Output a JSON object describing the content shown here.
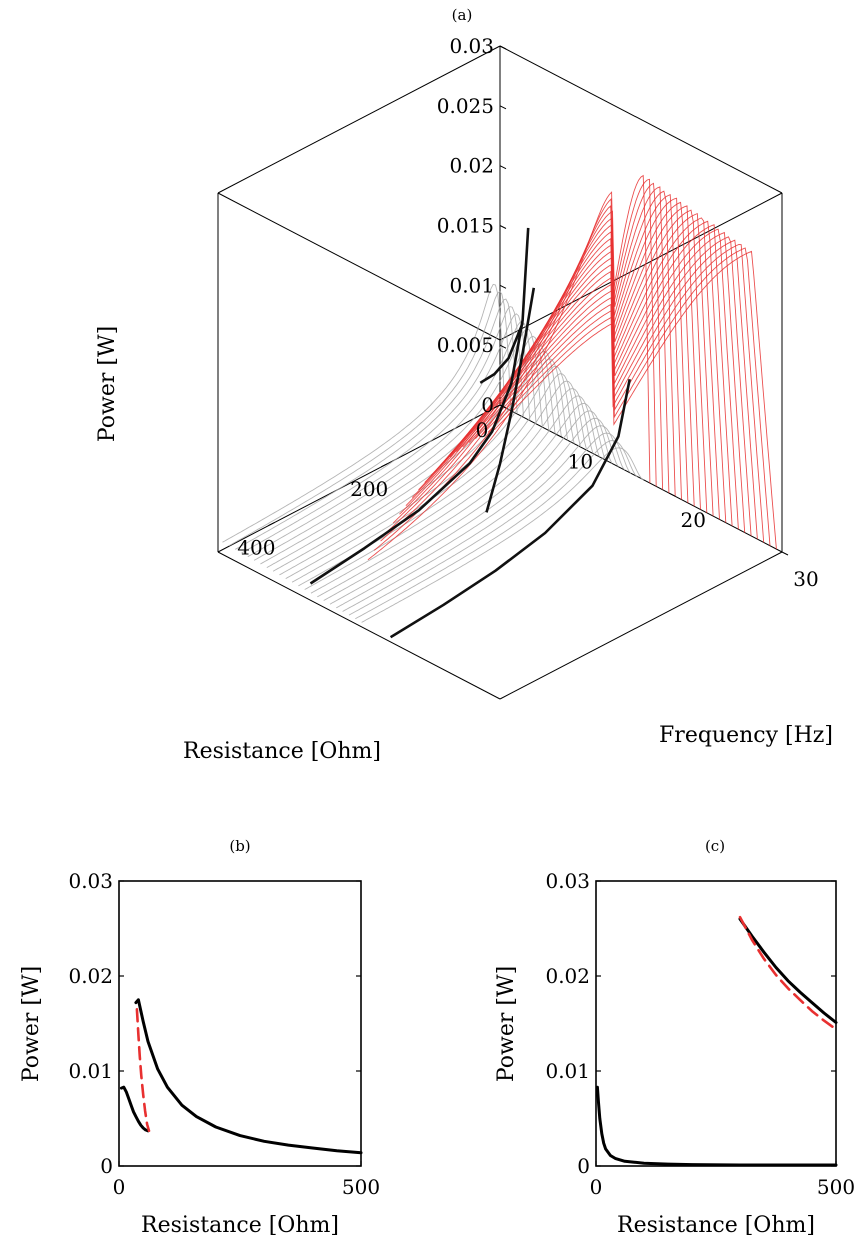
{
  "chart_data": [
    {
      "panel": "(a)",
      "type": "line",
      "projection": "3d",
      "xlabel": "Resistance [Ohm]",
      "ylabel": "Frequency [Hz]",
      "zlabel": "Power [W]",
      "xlim": [
        0,
        500
      ],
      "ylim": [
        5,
        30
      ],
      "zlim": [
        0,
        0.03
      ],
      "xticks": [
        "0",
        "200",
        "400"
      ],
      "yticks": [
        "10",
        "20",
        "30"
      ],
      "zticks": [
        "0",
        "0.005",
        "0.01",
        "0.015",
        "0.02",
        "0.025",
        "0.03"
      ],
      "grid": false,
      "legend": "none",
      "colors": {
        "grey_family": "#a8a8a8",
        "red_family": "#e83030",
        "black_curve": "#111111"
      },
      "families": [
        {
          "color": "#a8a8a8",
          "frequency_range": [
            5,
            17.5
          ],
          "note_values": "peak power at low resistance; maximum about 0.011 W"
        },
        {
          "color": "#e83030",
          "frequency_range": [
            18,
            29
          ],
          "note_values": "power rising to about 0.026 W"
        }
      ],
      "series": [
        {
          "points": [
            {
              "R": 10,
              "f": 7.5,
              "P": 0.0083
            },
            {
              "R": 25,
              "f": 7.0,
              "P": 0.0055
            },
            {
              "R": 40,
              "f": 6.5,
              "P": 0.0043
            },
            {
              "R": 55,
              "f": 6.0,
              "P": 0.0037
            }
          ]
        },
        {
          "points": [
            {
              "R": 30,
              "f": 9.0,
              "P": 0.0175
            },
            {
              "R": 60,
              "f": 10.0,
              "P": 0.011
            },
            {
              "R": 100,
              "f": 11.0,
              "P": 0.0072
            },
            {
              "R": 150,
              "f": 11.8,
              "P": 0.0048
            },
            {
              "R": 200,
              "f": 12.3,
              "P": 0.0036
            },
            {
              "R": 300,
              "f": 12.8,
              "P": 0.0024
            },
            {
              "R": 400,
              "f": 13.0,
              "P": 0.0018
            },
            {
              "R": 500,
              "f": 13.2,
              "P": 0.0014
            }
          ]
        },
        {
          "points": [
            {
              "R": 10,
              "f": 17.0,
              "P": 0.0083
            },
            {
              "R": 40,
              "f": 17.5,
              "P": 0.0045
            },
            {
              "R": 100,
              "f": 18.2,
              "P": 0.0022
            },
            {
              "R": 200,
              "f": 19.0,
              "P": 0.0011
            },
            {
              "R": 300,
              "f": 19.6,
              "P": 0.0007
            },
            {
              "R": 400,
              "f": 20.0,
              "P": 0.0005
            },
            {
              "R": 500,
              "f": 20.3,
              "P": 0.0004
            }
          ]
        },
        {
          "points": [
            {
              "R": 300,
              "f": 23.0,
              "P": 0.026
            },
            {
              "R": 350,
              "f": 24.5,
              "P": 0.0225
            },
            {
              "R": 400,
              "f": 26.0,
              "P": 0.0195
            },
            {
              "R": 450,
              "f": 27.5,
              "P": 0.0172
            },
            {
              "R": 500,
              "f": 28.8,
              "P": 0.015
            }
          ]
        }
      ]
    },
    {
      "panel": "(b)",
      "type": "line",
      "xlabel": "Resistance [Ohm]",
      "ylabel": "Power [W]",
      "xlim": [
        0,
        500
      ],
      "ylim": [
        0,
        0.03
      ],
      "xticks": [
        "0",
        "500"
      ],
      "yticks": [
        "0",
        "0.01",
        "0.02",
        "0.03"
      ],
      "grid": false,
      "legend": "none",
      "series": [
        {
          "color": "#000000",
          "style": "solid",
          "x": [
            5,
            10,
            15,
            20,
            25,
            30,
            35,
            40,
            45,
            50,
            55,
            60
          ],
          "y": [
            0.0082,
            0.0083,
            0.0078,
            0.0071,
            0.0064,
            0.0057,
            0.0052,
            0.0047,
            0.0043,
            0.004,
            0.0038,
            0.0037
          ]
        },
        {
          "color": "#000000",
          "style": "solid",
          "x": [
            35,
            40,
            50,
            60,
            80,
            100,
            130,
            160,
            200,
            250,
            300,
            350,
            400,
            450,
            500
          ],
          "y": [
            0.0172,
            0.0175,
            0.0152,
            0.0131,
            0.0102,
            0.0083,
            0.0064,
            0.0052,
            0.0041,
            0.0032,
            0.0026,
            0.0022,
            0.0019,
            0.0016,
            0.0014
          ]
        },
        {
          "color": "#e83030",
          "style": "dashed",
          "x": [
            37,
            40,
            43,
            46,
            50,
            54,
            58,
            62
          ],
          "y": [
            0.0165,
            0.0138,
            0.0115,
            0.0095,
            0.0075,
            0.0058,
            0.0044,
            0.0037
          ]
        }
      ]
    },
    {
      "panel": "(c)",
      "type": "line",
      "xlabel": "Resistance [Ohm]",
      "ylabel": "Power [W]",
      "xlim": [
        0,
        500
      ],
      "ylim": [
        0,
        0.03
      ],
      "xticks": [
        "0",
        "500"
      ],
      "yticks": [
        "0",
        "0.01",
        "0.02",
        "0.03"
      ],
      "grid": false,
      "legend": "none",
      "series": [
        {
          "color": "#000000",
          "style": "solid",
          "x": [
            300,
            325,
            350,
            375,
            400,
            425,
            450,
            475,
            500
          ],
          "y": [
            0.026,
            0.0242,
            0.0225,
            0.0209,
            0.0195,
            0.0183,
            0.0172,
            0.0161,
            0.0151
          ]
        },
        {
          "color": "#e83030",
          "style": "dashed",
          "x": [
            300,
            325,
            350,
            375,
            400,
            425,
            450,
            475,
            500
          ],
          "y": [
            0.0262,
            0.0238,
            0.0218,
            0.0201,
            0.0187,
            0.0175,
            0.0163,
            0.0153,
            0.0144
          ]
        },
        {
          "color": "#000000",
          "style": "solid",
          "x": [
            3,
            5,
            8,
            12,
            16,
            20,
            30,
            40,
            60,
            80,
            100,
            150,
            200,
            300,
            400,
            500
          ],
          "y": [
            0.0083,
            0.0068,
            0.005,
            0.0034,
            0.0024,
            0.0018,
            0.0011,
            0.0008,
            0.0005,
            0.0004,
            0.0003,
            0.0002,
            0.00015,
            0.0001,
            0.0001,
            0.0001
          ]
        }
      ]
    }
  ]
}
